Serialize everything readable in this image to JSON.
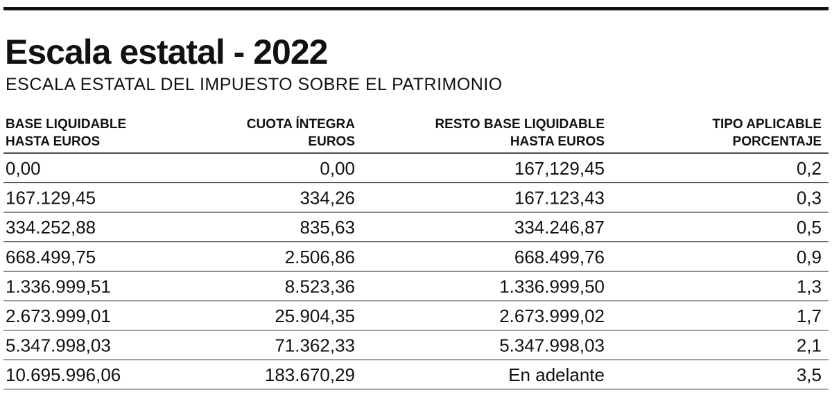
{
  "header": {
    "title": "Escala estatal - 2022",
    "subtitle": "ESCALA ESTATAL DEL IMPUESTO SOBRE EL PATRIMONIO"
  },
  "table": {
    "columns": [
      [
        "BASE LIQUIDABLE",
        "HASTA EUROS"
      ],
      [
        "CUOTA ÍNTEGRA",
        "EUROS"
      ],
      [
        "RESTO BASE LIQUIDABLE",
        "HASTA EUROS"
      ],
      [
        "TIPO APLICABLE",
        "PORCENTAJE"
      ]
    ],
    "rows": [
      [
        "0,00",
        "0,00",
        "167,129,45",
        "0,2"
      ],
      [
        "167.129,45",
        "334,26",
        "167.123,43",
        "0,3"
      ],
      [
        "334.252,88",
        "835,63",
        "334.246,87",
        "0,5"
      ],
      [
        "668.499,75",
        "2.506,86",
        "668.499,76",
        "0,9"
      ],
      [
        "1.336.999,51",
        "8.523,36",
        "1.336.999,50",
        "1,3"
      ],
      [
        "2.673.999,01",
        "25.904,35",
        "2.673.999,02",
        "1,7"
      ],
      [
        "5.347.998,03",
        "71.362,33",
        "5.347.998,03",
        "2,1"
      ],
      [
        "10.695.996,06",
        "183.670,29",
        "En adelante",
        "3,5"
      ]
    ]
  }
}
